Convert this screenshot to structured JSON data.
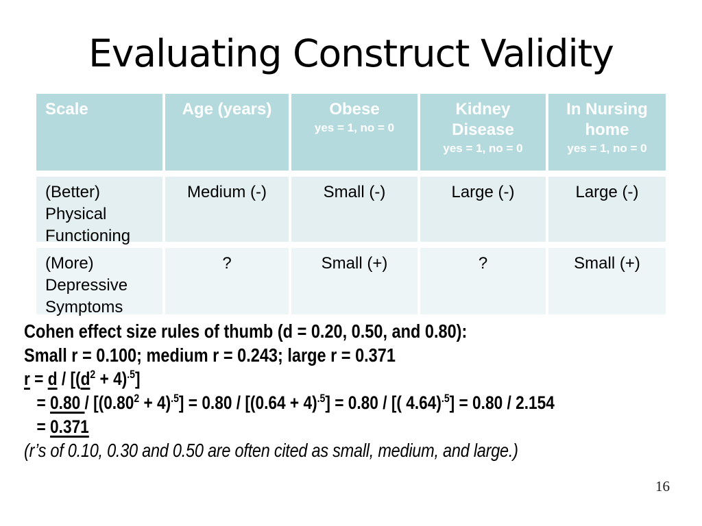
{
  "slide": {
    "title": "Evaluating Construct Validity",
    "page_number": "16"
  },
  "table": {
    "colors": {
      "header_bg": "#b5dadd",
      "header_text": "#ffffff",
      "row1_bg": "#e4eff1",
      "row2_bg": "#edf5f6"
    },
    "headers": [
      {
        "title": "Scale",
        "sub": ""
      },
      {
        "title": "Age (years)",
        "sub": ""
      },
      {
        "title": "Obese",
        "sub": "yes = 1, no = 0"
      },
      {
        "title": "Kidney\nDisease",
        "sub": "yes = 1, no = 0"
      },
      {
        "title": "In Nursing\nhome",
        "sub": "yes = 1, no = 0"
      }
    ],
    "rows": [
      {
        "cells": [
          "(Better)\nPhysical\nFunctioning",
          "Medium (-)",
          "Small (-)",
          "Large (-)",
          "Large (-)"
        ]
      },
      {
        "cells": [
          "(More)\nDepressive\nSymptoms",
          "?",
          "Small (+)",
          "?",
          "Small (+)"
        ]
      }
    ]
  },
  "notes": {
    "cohen_rule": "Cohen effect size rules of thumb (d = 0.20, 0.50, and 0.80):",
    "r_values": "Small r = 0.100; medium r = 0.243; large r = 0.371",
    "formula": [
      {
        "t": "r",
        "u": true
      },
      {
        "t": " = "
      },
      {
        "t": "d",
        "u": true
      },
      {
        "t": " / [("
      },
      {
        "t": "d",
        "u": true
      },
      {
        "t": "2",
        "sup": true
      },
      {
        "t": " + 4)"
      },
      {
        "t": ".5",
        "sup": true
      },
      {
        "t": "]"
      }
    ],
    "calc1": [
      {
        "t": "= "
      },
      {
        "t": "0.80 ",
        "u": true
      },
      {
        "t": "/ [(0.80"
      },
      {
        "t": "2",
        "sup": true
      },
      {
        "t": " + 4)"
      },
      {
        "t": ".5",
        "sup": true
      },
      {
        "t": "] = 0.80 / [(0.64 + 4)"
      },
      {
        "t": ".5",
        "sup": true
      },
      {
        "t": "] = 0.80 / [( 4.64)"
      },
      {
        "t": ".5",
        "sup": true
      },
      {
        "t": "] = 0.80 / 2.154"
      }
    ],
    "calc2": [
      {
        "t": "= "
      },
      {
        "t": "0.371",
        "u": true
      }
    ],
    "citation": "(r’s of 0.10, 0.30 and 0.50 are often cited as small, medium, and large.)"
  }
}
